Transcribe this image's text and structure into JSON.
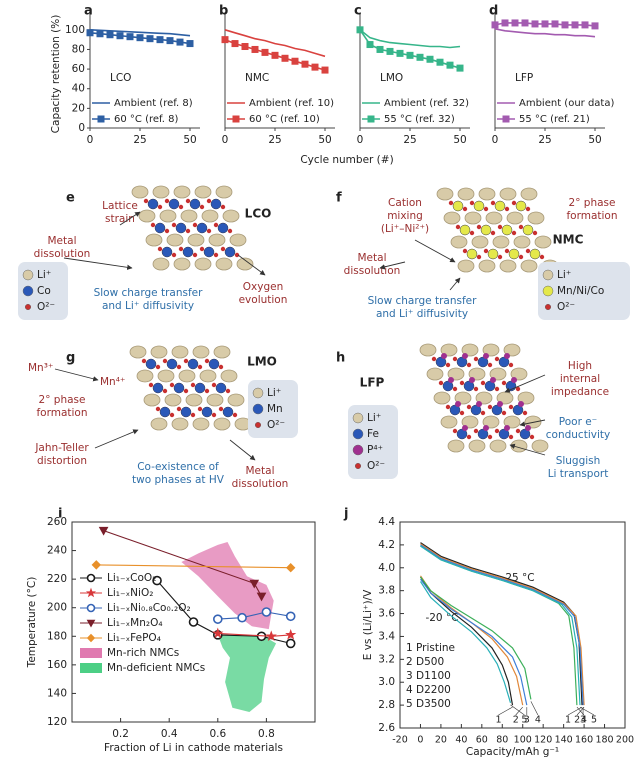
{
  "row1_axes": {
    "ylabel": "Capacity retention (%)",
    "xlabel": "Cycle number (#)"
  },
  "chart_data": [
    {
      "type": "line",
      "panel": "a",
      "label": "LCO",
      "x": [
        0,
        5,
        10,
        15,
        20,
        25,
        30,
        35,
        40,
        45,
        50
      ],
      "xlim": [
        0,
        55
      ],
      "xticks": [
        0,
        25,
        50
      ],
      "ylim": [
        0,
        110
      ],
      "yticks": [
        0,
        20,
        40,
        60,
        80,
        100
      ],
      "series": [
        {
          "name": "Ambient (ref. 8)",
          "color": "#2d5fa3",
          "values": [
            100,
            99.5,
            99,
            98.5,
            98,
            97.5,
            97,
            96.5,
            96,
            95,
            94
          ]
        },
        {
          "name": "60 °C (ref. 8)",
          "color": "#2d5fa3",
          "marker": "square",
          "values": [
            97,
            96,
            95,
            94,
            93,
            92,
            91,
            90,
            89,
            87.5,
            86
          ]
        }
      ]
    },
    {
      "type": "line",
      "panel": "b",
      "label": "NMC",
      "x": [
        0,
        5,
        10,
        15,
        20,
        25,
        30,
        35,
        40,
        45,
        50
      ],
      "xlim": [
        0,
        55
      ],
      "xticks": [
        0,
        25,
        50
      ],
      "ylim": [
        0,
        110
      ],
      "series": [
        {
          "name": "Ambient (ref. 10)",
          "color": "#d9423f",
          "values": [
            100,
            97,
            94,
            91,
            89,
            86,
            84,
            81,
            79,
            76,
            73
          ]
        },
        {
          "name": "60 °C (ref. 10)",
          "color": "#d9423f",
          "marker": "square",
          "values": [
            90,
            86,
            83,
            80,
            77,
            74,
            71,
            68,
            65,
            62,
            59
          ]
        }
      ]
    },
    {
      "type": "line",
      "panel": "c",
      "label": "LMO",
      "x": [
        0,
        5,
        10,
        15,
        20,
        25,
        30,
        35,
        40,
        45,
        50
      ],
      "xlim": [
        0,
        55
      ],
      "xticks": [
        0,
        25,
        50
      ],
      "ylim": [
        0,
        110
      ],
      "series": [
        {
          "name": "Ambient (ref. 32)",
          "color": "#36b58a",
          "values": [
            100,
            92,
            89,
            87,
            86,
            85,
            84,
            83,
            83,
            82,
            83
          ]
        },
        {
          "name": "55 °C (ref. 32)",
          "color": "#36b58a",
          "marker": "square",
          "values": [
            100,
            85,
            80,
            78,
            76,
            74,
            72,
            70,
            67,
            64,
            61
          ]
        }
      ]
    },
    {
      "type": "line",
      "panel": "d",
      "label": "LFP",
      "x": [
        0,
        5,
        10,
        15,
        20,
        25,
        30,
        35,
        40,
        45,
        50
      ],
      "xlim": [
        0,
        55
      ],
      "xticks": [
        0,
        25,
        50
      ],
      "ylim": [
        0,
        110
      ],
      "series": [
        {
          "name": "Ambient (our data)",
          "color": "#a35bb0",
          "values": [
            101,
            99,
            98,
            97,
            96,
            96,
            95,
            95,
            94,
            94,
            93
          ]
        },
        {
          "name": "55 °C (ref. 21)",
          "color": "#a35bb0",
          "marker": "square",
          "values": [
            105,
            107,
            107,
            107,
            106,
            106,
            106,
            105,
            105,
            105,
            104
          ]
        }
      ]
    },
    {
      "type": "scatter",
      "panel": "i",
      "xlabel": "Fraction of Li in cathode materials",
      "ylabel": "Temperature (°C)",
      "xlim": [
        0,
        1
      ],
      "xticks": [
        0.2,
        0.4,
        0.6,
        0.8
      ],
      "ylim": [
        120,
        260
      ],
      "yticks": [
        120,
        140,
        160,
        180,
        200,
        220,
        240,
        260
      ],
      "series": [
        {
          "name": "Li₁₋ₓCoO₂",
          "color": "#1a1a1a",
          "marker": "circle",
          "x": [
            0.35,
            0.5,
            0.6,
            0.78,
            0.9
          ],
          "values": [
            219,
            190,
            181,
            180,
            175
          ]
        },
        {
          "name": "Li₁₋ₓNiO₂",
          "color": "#d8383a",
          "marker": "star",
          "x": [
            0.6,
            0.82,
            0.9
          ],
          "values": [
            182,
            180,
            181
          ]
        },
        {
          "name": "Li₁₋ₓNi₀.₈Co₀.₂O₂",
          "color": "#3563b5",
          "marker": "circle",
          "x": [
            0.6,
            0.7,
            0.8,
            0.9
          ],
          "values": [
            192,
            193,
            197,
            194
          ]
        },
        {
          "name": "Li₁₋ₓMn₂O₄",
          "color": "#7a1f2b",
          "marker": "triangle",
          "x": [
            0.13,
            0.75,
            0.78
          ],
          "values": [
            254,
            217,
            208
          ]
        },
        {
          "name": "Li₁₋ₓFePO₄",
          "color": "#e8902a",
          "marker": "diamond",
          "x": [
            0.1,
            0.9
          ],
          "values": [
            230,
            228
          ]
        },
        {
          "name": "Mn-rich NMCs",
          "color": "#e07ab0",
          "kind": "area",
          "x": [
            0.45,
            0.52,
            0.6,
            0.64,
            0.67,
            0.72,
            0.8,
            0.83,
            0.81,
            0.74,
            0.67,
            0.6,
            0.52
          ],
          "values": [
            232,
            238,
            244,
            246,
            236,
            222,
            216,
            205,
            185,
            187,
            196,
            208,
            222
          ]
        },
        {
          "name": "Mn-deficient NMCs",
          "color": "#4ccf85",
          "kind": "area",
          "x": [
            0.6,
            0.7,
            0.8,
            0.84,
            0.81,
            0.79,
            0.78,
            0.73,
            0.66,
            0.63,
            0.65,
            0.62
          ],
          "values": [
            181,
            181,
            179,
            175,
            165,
            150,
            134,
            127,
            130,
            148,
            165,
            172
          ]
        }
      ]
    },
    {
      "type": "line",
      "panel": "j",
      "xlabel": "Capacity/mAh g⁻¹",
      "ylabel": "E vs (Li/Li⁺)/V",
      "xlim": [
        -20,
        200
      ],
      "xticks": [
        -20,
        0,
        20,
        40,
        60,
        80,
        100,
        120,
        140,
        160,
        180,
        200
      ],
      "ylim": [
        2.6,
        4.4
      ],
      "yticks": [
        2.6,
        2.8,
        {
          "value": 3,
          "label": "3.0"
        },
        3.2,
        3.4,
        3.6,
        3.8,
        {
          "value": 4,
          "label": "4.0"
        },
        4.2,
        4.4
      ],
      "legend": [
        "1 Pristine",
        "2 D500",
        "3 D1100",
        "4 D2200",
        "5 D3500"
      ],
      "groups": [
        {
          "label": "25 °C",
          "series": [
            {
              "tag": "1",
              "color": "#222222",
              "x": [
                0,
                20,
                50,
                80,
                110,
                140,
                150,
                155,
                158
              ],
              "values": [
                4.22,
                4.1,
                4.0,
                3.92,
                3.83,
                3.7,
                3.6,
                3.35,
                2.8
              ]
            },
            {
              "tag": "2",
              "color": "#e0883a",
              "x": [
                0,
                20,
                50,
                80,
                110,
                140,
                152,
                157,
                160
              ],
              "values": [
                4.21,
                4.09,
                3.99,
                3.91,
                3.82,
                3.69,
                3.58,
                3.3,
                2.8
              ]
            },
            {
              "tag": "3",
              "color": "#3f7fd8",
              "x": [
                0,
                20,
                50,
                80,
                110,
                140,
                151,
                156,
                159
              ],
              "values": [
                4.2,
                4.08,
                3.98,
                3.9,
                3.81,
                3.68,
                3.57,
                3.3,
                2.8
              ]
            },
            {
              "tag": "4",
              "color": "#3caf5a",
              "x": [
                0,
                20,
                50,
                80,
                110,
                135,
                145,
                150,
                153
              ],
              "values": [
                4.19,
                4.07,
                3.97,
                3.89,
                3.8,
                3.69,
                3.58,
                3.3,
                2.8
              ]
            },
            {
              "tag": "5",
              "color": "#29b0b8",
              "x": [
                0,
                20,
                50,
                80,
                110,
                138,
                148,
                153,
                156
              ],
              "values": [
                4.19,
                4.07,
                3.97,
                3.89,
                3.8,
                3.68,
                3.57,
                3.3,
                2.8
              ]
            }
          ]
        },
        {
          "label": "-20 °C",
          "series": [
            {
              "tag": "1",
              "color": "#222222",
              "x": [
                0,
                10,
                30,
                50,
                70,
                80,
                86,
                90
              ],
              "values": [
                3.92,
                3.78,
                3.62,
                3.48,
                3.3,
                3.15,
                3.0,
                2.8
              ]
            },
            {
              "tag": "2",
              "color": "#e0883a",
              "x": [
                0,
                10,
                30,
                50,
                70,
                85,
                94,
                100
              ],
              "values": [
                3.93,
                3.8,
                3.65,
                3.52,
                3.38,
                3.22,
                3.05,
                2.8
              ]
            },
            {
              "tag": "3",
              "color": "#3f7fd8",
              "x": [
                0,
                10,
                30,
                50,
                70,
                90,
                98,
                104
              ],
              "values": [
                3.9,
                3.78,
                3.64,
                3.52,
                3.4,
                3.22,
                3.05,
                2.8
              ]
            },
            {
              "tag": "4",
              "color": "#3caf5a",
              "x": [
                0,
                10,
                30,
                50,
                70,
                90,
                102,
                108
              ],
              "values": [
                3.92,
                3.8,
                3.67,
                3.56,
                3.45,
                3.3,
                3.12,
                2.85
              ]
            },
            {
              "tag": "5",
              "color": "#29b0b8",
              "x": [
                0,
                10,
                30,
                50,
                65,
                75,
                82,
                88
              ],
              "values": [
                3.88,
                3.74,
                3.58,
                3.44,
                3.3,
                3.16,
                3.0,
                2.82
              ]
            }
          ]
        }
      ]
    }
  ],
  "diagrams": [
    {
      "panel": "e",
      "title": "LCO",
      "mid_color": "#2a58b8",
      "annotations": [
        {
          "lines": [
            "Lattice",
            "strain"
          ],
          "color": "#9a2f2f"
        },
        {
          "lines": [
            "Metal",
            "dissolution"
          ],
          "color": "#9a2f2f"
        },
        {
          "lines": [
            "Oxygen",
            "evolution"
          ],
          "color": "#9a2f2f"
        },
        {
          "lines": [
            "Slow charge transfer",
            "and Li⁺ diffusivity"
          ],
          "color": "#2f6fa8"
        }
      ],
      "legend": [
        {
          "label": "Li⁺",
          "color": "#d8cba8"
        },
        {
          "label": "Co",
          "color": "#2a58b8"
        },
        {
          "label": "O²⁻",
          "color": "#c83030"
        }
      ]
    },
    {
      "panel": "f",
      "title": "NMC",
      "mid_color": "#e4e84a",
      "annotations": [
        {
          "lines": [
            "Cation",
            "mixing",
            "(Li⁺–Ni²⁺)"
          ],
          "color": "#9a2f2f"
        },
        {
          "lines": [
            "2° phase",
            "formation"
          ],
          "color": "#9a2f2f"
        },
        {
          "lines": [
            "Metal",
            "dissolution"
          ],
          "color": "#9a2f2f"
        },
        {
          "lines": [
            "Slow charge transfer",
            "and Li⁺ diffusivity"
          ],
          "color": "#2f6fa8"
        }
      ],
      "legend": [
        {
          "label": "Li⁺",
          "color": "#d8cba8"
        },
        {
          "label": "Mn/Ni/Co",
          "color": "#e4e84a"
        },
        {
          "label": "O²⁻",
          "color": "#c83030"
        }
      ]
    },
    {
      "panel": "g",
      "title": "LMO",
      "mid_color": "#2a58b8",
      "annotations": [
        {
          "lines": [
            "Mn³⁺"
          ],
          "color": "#9a2f2f"
        },
        {
          "lines": [
            "Mn⁴⁺"
          ],
          "color": "#9a2f2f"
        },
        {
          "lines": [
            "2° phase",
            "formation"
          ],
          "color": "#9a2f2f"
        },
        {
          "lines": [
            "Jahn-Teller",
            "distortion"
          ],
          "color": "#9a2f2f"
        },
        {
          "lines": [
            "Co-existence of",
            "two phases at HV"
          ],
          "color": "#2f6fa8"
        },
        {
          "lines": [
            "Metal",
            "dissolution"
          ],
          "color": "#9a2f2f"
        }
      ],
      "legend": [
        {
          "label": "Li⁺",
          "color": "#d8cba8"
        },
        {
          "label": "Mn",
          "color": "#2a58b8"
        },
        {
          "label": "O²⁻",
          "color": "#c83030"
        }
      ]
    },
    {
      "panel": "h",
      "title": "LFP",
      "mid_color": "#a03090",
      "annotations": [
        {
          "lines": [
            "High",
            "internal",
            "impedance"
          ],
          "color": "#9a2f2f"
        },
        {
          "lines": [
            "Poor e⁻",
            "conductivity"
          ],
          "color": "#2f6fa8"
        },
        {
          "lines": [
            "Sluggish",
            "Li transport"
          ],
          "color": "#2f6fa8"
        }
      ],
      "legend": [
        {
          "label": "Li⁺",
          "color": "#d8cba8"
        },
        {
          "label": "Fe",
          "color": "#2a58b8"
        },
        {
          "label": "P⁴⁺",
          "color": "#a03090"
        },
        {
          "label": "O²⁻",
          "color": "#c83030"
        }
      ]
    }
  ]
}
